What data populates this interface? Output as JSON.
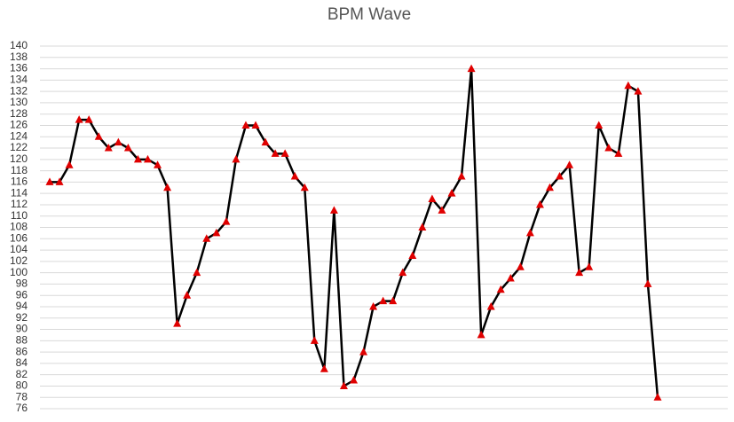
{
  "chart_data": {
    "type": "line",
    "title": "BPM Wave",
    "categories": [
      null,
      null,
      null,
      null,
      null,
      null,
      null,
      null,
      null,
      null,
      null,
      null,
      null,
      null,
      null,
      null,
      null,
      null,
      null,
      null,
      null,
      null,
      null,
      null,
      null,
      null,
      null,
      null,
      null,
      null,
      null,
      null,
      null,
      null,
      null,
      null,
      null,
      null,
      null,
      null,
      null,
      null,
      null,
      null,
      null,
      null,
      null,
      null,
      null,
      null,
      null,
      null,
      null,
      null,
      null,
      null,
      null,
      null,
      null,
      null,
      null,
      null,
      null
    ],
    "values": [
      116,
      116,
      119,
      127,
      127,
      124,
      122,
      123,
      122,
      120,
      120,
      119,
      115,
      91,
      96,
      100,
      106,
      107,
      109,
      120,
      126,
      126,
      123,
      121,
      121,
      117,
      115,
      88,
      83,
      111,
      80,
      81,
      86,
      94,
      95,
      95,
      100,
      103,
      108,
      113,
      111,
      114,
      117,
      136,
      89,
      94,
      97,
      99,
      101,
      107,
      112,
      115,
      117,
      119,
      100,
      101,
      126,
      122,
      121,
      133,
      132,
      98,
      78
    ],
    "color": "#000000",
    "marker_color": "#e00000",
    "ylim": [
      76,
      140
    ],
    "yticks": [
      76,
      78,
      80,
      82,
      84,
      86,
      88,
      90,
      92,
      94,
      96,
      98,
      100,
      102,
      104,
      106,
      108,
      110,
      112,
      114,
      116,
      118,
      120,
      122,
      124,
      126,
      128,
      130,
      132,
      134,
      136,
      138,
      140
    ],
    "grid": true
  }
}
